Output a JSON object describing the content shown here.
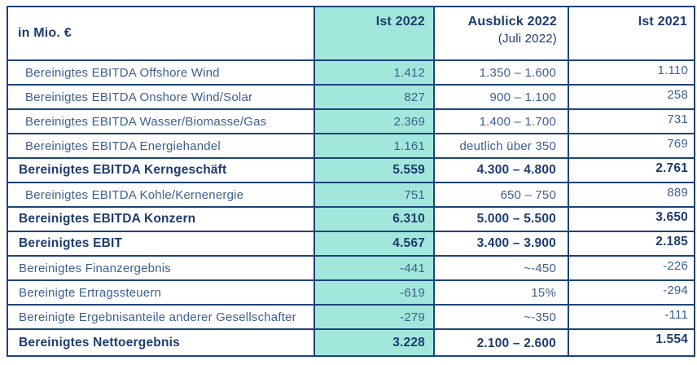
{
  "table": {
    "unit_label": "in Mio. €",
    "columns": {
      "ist2022": "Ist 2022",
      "ausblick_title": "Ausblick 2022",
      "ausblick_subtitle": "(Juli 2022)",
      "ist2021": "Ist 2021"
    },
    "colors": {
      "highlight_teal": "#A2E7DB",
      "border_navy": "#1D4477",
      "text_bold_navy": "#1D3C6E",
      "text_regular_blue": "#3D5F8F"
    },
    "rows": [
      {
        "label": "Bereinigtes EBITDA Offshore Wind",
        "ist2022": "1.412",
        "ausblick": "1.350 – 1.600",
        "ist2021": "1.110",
        "bold": false,
        "indent": true
      },
      {
        "label": "Bereinigtes EBITDA Onshore Wind/Solar",
        "ist2022": "827",
        "ausblick": "900 – 1.100",
        "ist2021": "258",
        "bold": false,
        "indent": true
      },
      {
        "label": "Bereinigtes EBITDA Wasser/Biomasse/Gas",
        "ist2022": "2.369",
        "ausblick": "1.400 – 1.700",
        "ist2021": "731",
        "bold": false,
        "indent": true
      },
      {
        "label": "Bereinigtes EBITDA Energiehandel",
        "ist2022": "1.161",
        "ausblick": "deutlich über 350",
        "ist2021": "769",
        "bold": false,
        "indent": true
      },
      {
        "label": "Bereinigtes EBITDA Kerngeschäft",
        "ist2022": "5.559",
        "ausblick": "4.300 – 4.800",
        "ist2021": "2.761",
        "bold": true,
        "indent": false
      },
      {
        "label": "Bereinigtes EBITDA Kohle/Kernenergie",
        "ist2022": "751",
        "ausblick": "650 – 750",
        "ist2021": "889",
        "bold": false,
        "indent": true
      },
      {
        "label": "Bereinigtes EBITDA Konzern",
        "ist2022": "6.310",
        "ausblick": "5.000 – 5.500",
        "ist2021": "3.650",
        "bold": true,
        "indent": false
      },
      {
        "label": "Bereinigtes EBIT",
        "ist2022": "4.567",
        "ausblick": "3.400 – 3.900",
        "ist2021": "2.185",
        "bold": true,
        "indent": false
      },
      {
        "label": "Bereinigtes Finanzergebnis",
        "ist2022": "-441",
        "ausblick": "~-450",
        "ist2021": "-226",
        "bold": false,
        "indent": false
      },
      {
        "label": "Bereinigte Ertragssteuern",
        "ist2022": "-619",
        "ausblick": "15%",
        "ist2021": "-294",
        "bold": false,
        "indent": false
      },
      {
        "label": "Bereinigte Ergebnisanteile anderer Gesellschafter",
        "ist2022": "-279",
        "ausblick": "~-350",
        "ist2021": "-111",
        "bold": false,
        "indent": false
      },
      {
        "label": "Bereinigtes Nettoergebnis",
        "ist2022": "3.228",
        "ausblick": "2.100 – 2.600",
        "ist2021": "1.554",
        "bold": true,
        "indent": false
      }
    ]
  }
}
